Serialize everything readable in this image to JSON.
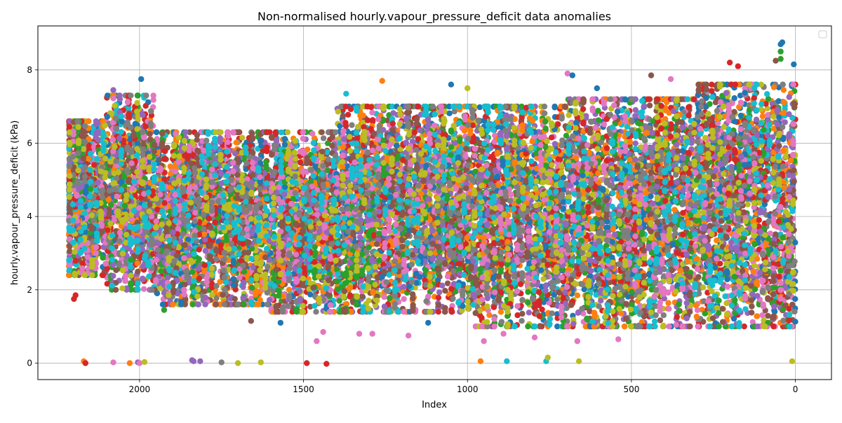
{
  "chart_data": {
    "type": "scatter",
    "title": "Non-normalised hourly.vapour_pressure_deficit data anomalies",
    "xlabel": "Index",
    "ylabel": "hourly.vapour_pressure_deficit (kPa)",
    "xlim": [
      2310,
      -110
    ],
    "ylim": [
      -0.45,
      9.2
    ],
    "x_ticks": [
      2000,
      1500,
      1000,
      500,
      0
    ],
    "y_ticks": [
      0,
      2,
      4,
      6,
      8
    ],
    "x_tick_labels": [
      "2000",
      "1500",
      "1000",
      "500",
      "0"
    ],
    "y_tick_labels": [
      "0",
      "2",
      "4",
      "6",
      "8"
    ],
    "grid": true,
    "legend": {
      "placement": "upper right",
      "entries": []
    },
    "x_range": [
      0,
      2215
    ],
    "palette": [
      "#1f77b4",
      "#ff7f0e",
      "#2ca02c",
      "#d62728",
      "#9467bd",
      "#8c564b",
      "#e377c2",
      "#7f7f7f",
      "#bcbd22",
      "#17becf"
    ],
    "series_count": 30,
    "outliers": [
      {
        "x": 2200,
        "y": 1.75,
        "color": "#d62728"
      },
      {
        "x": 2195,
        "y": 1.85,
        "color": "#d62728"
      },
      {
        "x": 2170,
        "y": 0.05,
        "color": "#ff7f0e"
      },
      {
        "x": 2165,
        "y": 0.0,
        "color": "#d62728"
      },
      {
        "x": 2080,
        "y": 0.02,
        "color": "#e377c2"
      },
      {
        "x": 2030,
        "y": 0.0,
        "color": "#ff7f0e"
      },
      {
        "x": 2005,
        "y": 0.02,
        "color": "#9467bd"
      },
      {
        "x": 2000,
        "y": 0.0,
        "color": "#e377c2"
      },
      {
        "x": 1985,
        "y": 0.03,
        "color": "#bcbd22"
      },
      {
        "x": 1840,
        "y": 0.08,
        "color": "#9467bd"
      },
      {
        "x": 1835,
        "y": 0.05,
        "color": "#9467bd"
      },
      {
        "x": 1815,
        "y": 0.05,
        "color": "#9467bd"
      },
      {
        "x": 1750,
        "y": 0.02,
        "color": "#7f7f7f"
      },
      {
        "x": 1700,
        "y": 0.0,
        "color": "#bcbd22"
      },
      {
        "x": 1630,
        "y": 0.02,
        "color": "#bcbd22"
      },
      {
        "x": 1490,
        "y": 0.0,
        "color": "#d62728"
      },
      {
        "x": 1430,
        "y": -0.02,
        "color": "#d62728"
      },
      {
        "x": 960,
        "y": 0.05,
        "color": "#ff7f0e"
      },
      {
        "x": 880,
        "y": 0.05,
        "color": "#17becf"
      },
      {
        "x": 760,
        "y": 0.05,
        "color": "#17becf"
      },
      {
        "x": 755,
        "y": 0.15,
        "color": "#bcbd22"
      },
      {
        "x": 660,
        "y": 0.05,
        "color": "#bcbd22"
      },
      {
        "x": 10,
        "y": 0.05,
        "color": "#bcbd22"
      },
      {
        "x": 1925,
        "y": 1.45,
        "color": "#2ca02c"
      },
      {
        "x": 1460,
        "y": 0.6,
        "color": "#e377c2"
      },
      {
        "x": 1440,
        "y": 0.85,
        "color": "#e377c2"
      },
      {
        "x": 1330,
        "y": 0.8,
        "color": "#e377c2"
      },
      {
        "x": 1290,
        "y": 0.8,
        "color": "#e377c2"
      },
      {
        "x": 1180,
        "y": 0.75,
        "color": "#e377c2"
      },
      {
        "x": 950,
        "y": 0.6,
        "color": "#e377c2"
      },
      {
        "x": 890,
        "y": 0.8,
        "color": "#e377c2"
      },
      {
        "x": 795,
        "y": 0.7,
        "color": "#e377c2"
      },
      {
        "x": 695,
        "y": 7.9,
        "color": "#e377c2"
      },
      {
        "x": 680,
        "y": 7.85,
        "color": "#1f77b4"
      },
      {
        "x": 665,
        "y": 0.6,
        "color": "#e377c2"
      },
      {
        "x": 540,
        "y": 0.65,
        "color": "#e377c2"
      },
      {
        "x": 440,
        "y": 7.85,
        "color": "#8c564b"
      },
      {
        "x": 200,
        "y": 8.2,
        "color": "#d62728"
      },
      {
        "x": 175,
        "y": 8.1,
        "color": "#d62728"
      },
      {
        "x": 60,
        "y": 8.25,
        "color": "#8c564b"
      },
      {
        "x": 45,
        "y": 8.7,
        "color": "#1f77b4"
      },
      {
        "x": 40,
        "y": 8.75,
        "color": "#1f77b4"
      },
      {
        "x": 45,
        "y": 8.5,
        "color": "#2ca02c"
      },
      {
        "x": 45,
        "y": 8.3,
        "color": "#2ca02c"
      },
      {
        "x": 5,
        "y": 8.15,
        "color": "#1f77b4"
      },
      {
        "x": 1260,
        "y": 7.7,
        "color": "#ff7f0e"
      },
      {
        "x": 1370,
        "y": 7.35,
        "color": "#17becf"
      },
      {
        "x": 1995,
        "y": 7.75,
        "color": "#1f77b4"
      },
      {
        "x": 2080,
        "y": 7.45,
        "color": "#9467bd"
      },
      {
        "x": 1000,
        "y": 7.5,
        "color": "#bcbd22"
      },
      {
        "x": 1050,
        "y": 7.6,
        "color": "#1f77b4"
      },
      {
        "x": 605,
        "y": 7.5,
        "color": "#1f77b4"
      },
      {
        "x": 380,
        "y": 7.75,
        "color": "#e377c2"
      },
      {
        "x": 1120,
        "y": 1.1,
        "color": "#1f77b4"
      },
      {
        "x": 1570,
        "y": 1.1,
        "color": "#1f77b4"
      },
      {
        "x": 1660,
        "y": 1.15,
        "color": "#8c564b"
      }
    ]
  }
}
